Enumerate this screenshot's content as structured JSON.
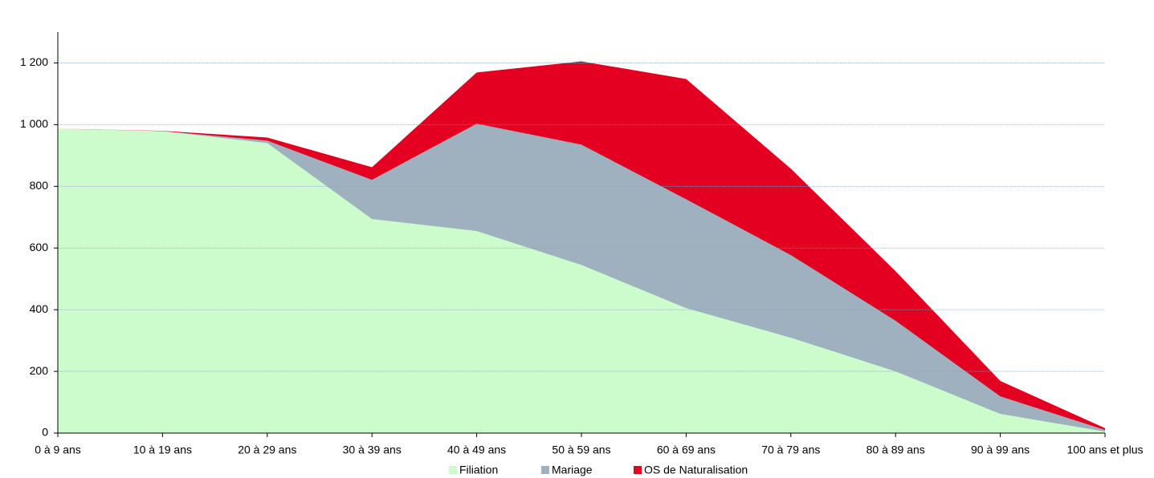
{
  "chart_data": {
    "type": "stacked_area",
    "categories": [
      "0 à 9 ans",
      "10 à 19 ans",
      "20 à 29 ans",
      "30 à 39 ans",
      "40 à 49 ans",
      "50 à 59 ans",
      "60 à 69 ans",
      "70 à 79 ans",
      "80 à 89 ans",
      "90 à 99 ans",
      "100 ans et plus"
    ],
    "series": [
      {
        "name": "Filiation",
        "color": "#ccfccc",
        "values": [
          987,
          979,
          940,
          694,
          655,
          545,
          405,
          309,
          200,
          62,
          5
        ]
      },
      {
        "name": "Mariage",
        "color": "#9fb1bf",
        "values": [
          0,
          0,
          8,
          127,
          348,
          390,
          353,
          268,
          164,
          57,
          5
        ]
      },
      {
        "name": "OS de Naturalisation",
        "color": "#e30020",
        "values": [
          0,
          1,
          10,
          41,
          166,
          270,
          390,
          280,
          161,
          50,
          6
        ]
      }
    ],
    "ylim": [
      0,
      1300
    ],
    "yticks": [
      0,
      200,
      400,
      600,
      800,
      {
        "value": 1000,
        "label": "1 000"
      },
      {
        "value": 1200,
        "label": "1 200"
      }
    ],
    "grid": true,
    "legend": "bottom"
  }
}
